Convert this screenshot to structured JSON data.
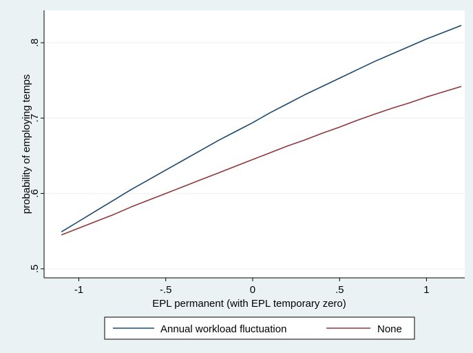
{
  "chart_data": {
    "type": "line",
    "title": "",
    "xlabel": "EPL permanent (with EPL temporary zero)",
    "ylabel": "probability of employing temps",
    "xlim": [
      -1.2,
      1.22
    ],
    "ylim": [
      0.488,
      0.843
    ],
    "x_ticks": [
      -1,
      -0.5,
      0,
      0.5,
      1
    ],
    "x_tick_labels": [
      "-1",
      "-.5",
      "0",
      ".5",
      "1"
    ],
    "y_ticks": [
      0.5,
      0.6,
      0.7,
      0.8
    ],
    "y_tick_labels": [
      ".5",
      ".6",
      ".7",
      ".8"
    ],
    "grid": true,
    "legend_position": "bottom",
    "series": [
      {
        "name": "Annual workload fluctuation",
        "color": "#1a476f",
        "x": [
          -1.1,
          -1.0,
          -0.9,
          -0.8,
          -0.7,
          -0.6,
          -0.5,
          -0.4,
          -0.3,
          -0.2,
          -0.1,
          0.0,
          0.1,
          0.2,
          0.3,
          0.4,
          0.5,
          0.6,
          0.7,
          0.8,
          0.9,
          1.0,
          1.1,
          1.2
        ],
        "y": [
          0.549,
          0.563,
          0.577,
          0.591,
          0.605,
          0.618,
          0.631,
          0.644,
          0.657,
          0.67,
          0.682,
          0.694,
          0.707,
          0.719,
          0.731,
          0.742,
          0.753,
          0.764,
          0.775,
          0.785,
          0.795,
          0.805,
          0.814,
          0.823
        ]
      },
      {
        "name": "None",
        "color": "#90353b",
        "x": [
          -1.1,
          -1.0,
          -0.9,
          -0.8,
          -0.7,
          -0.6,
          -0.5,
          -0.4,
          -0.3,
          -0.2,
          -0.1,
          0.0,
          0.1,
          0.2,
          0.3,
          0.4,
          0.5,
          0.6,
          0.7,
          0.8,
          0.9,
          1.0,
          1.1,
          1.2
        ],
        "y": [
          0.545,
          0.554,
          0.563,
          0.572,
          0.582,
          0.591,
          0.6,
          0.609,
          0.618,
          0.627,
          0.636,
          0.645,
          0.654,
          0.663,
          0.671,
          0.68,
          0.688,
          0.697,
          0.705,
          0.713,
          0.72,
          0.728,
          0.735,
          0.742
        ]
      }
    ]
  }
}
